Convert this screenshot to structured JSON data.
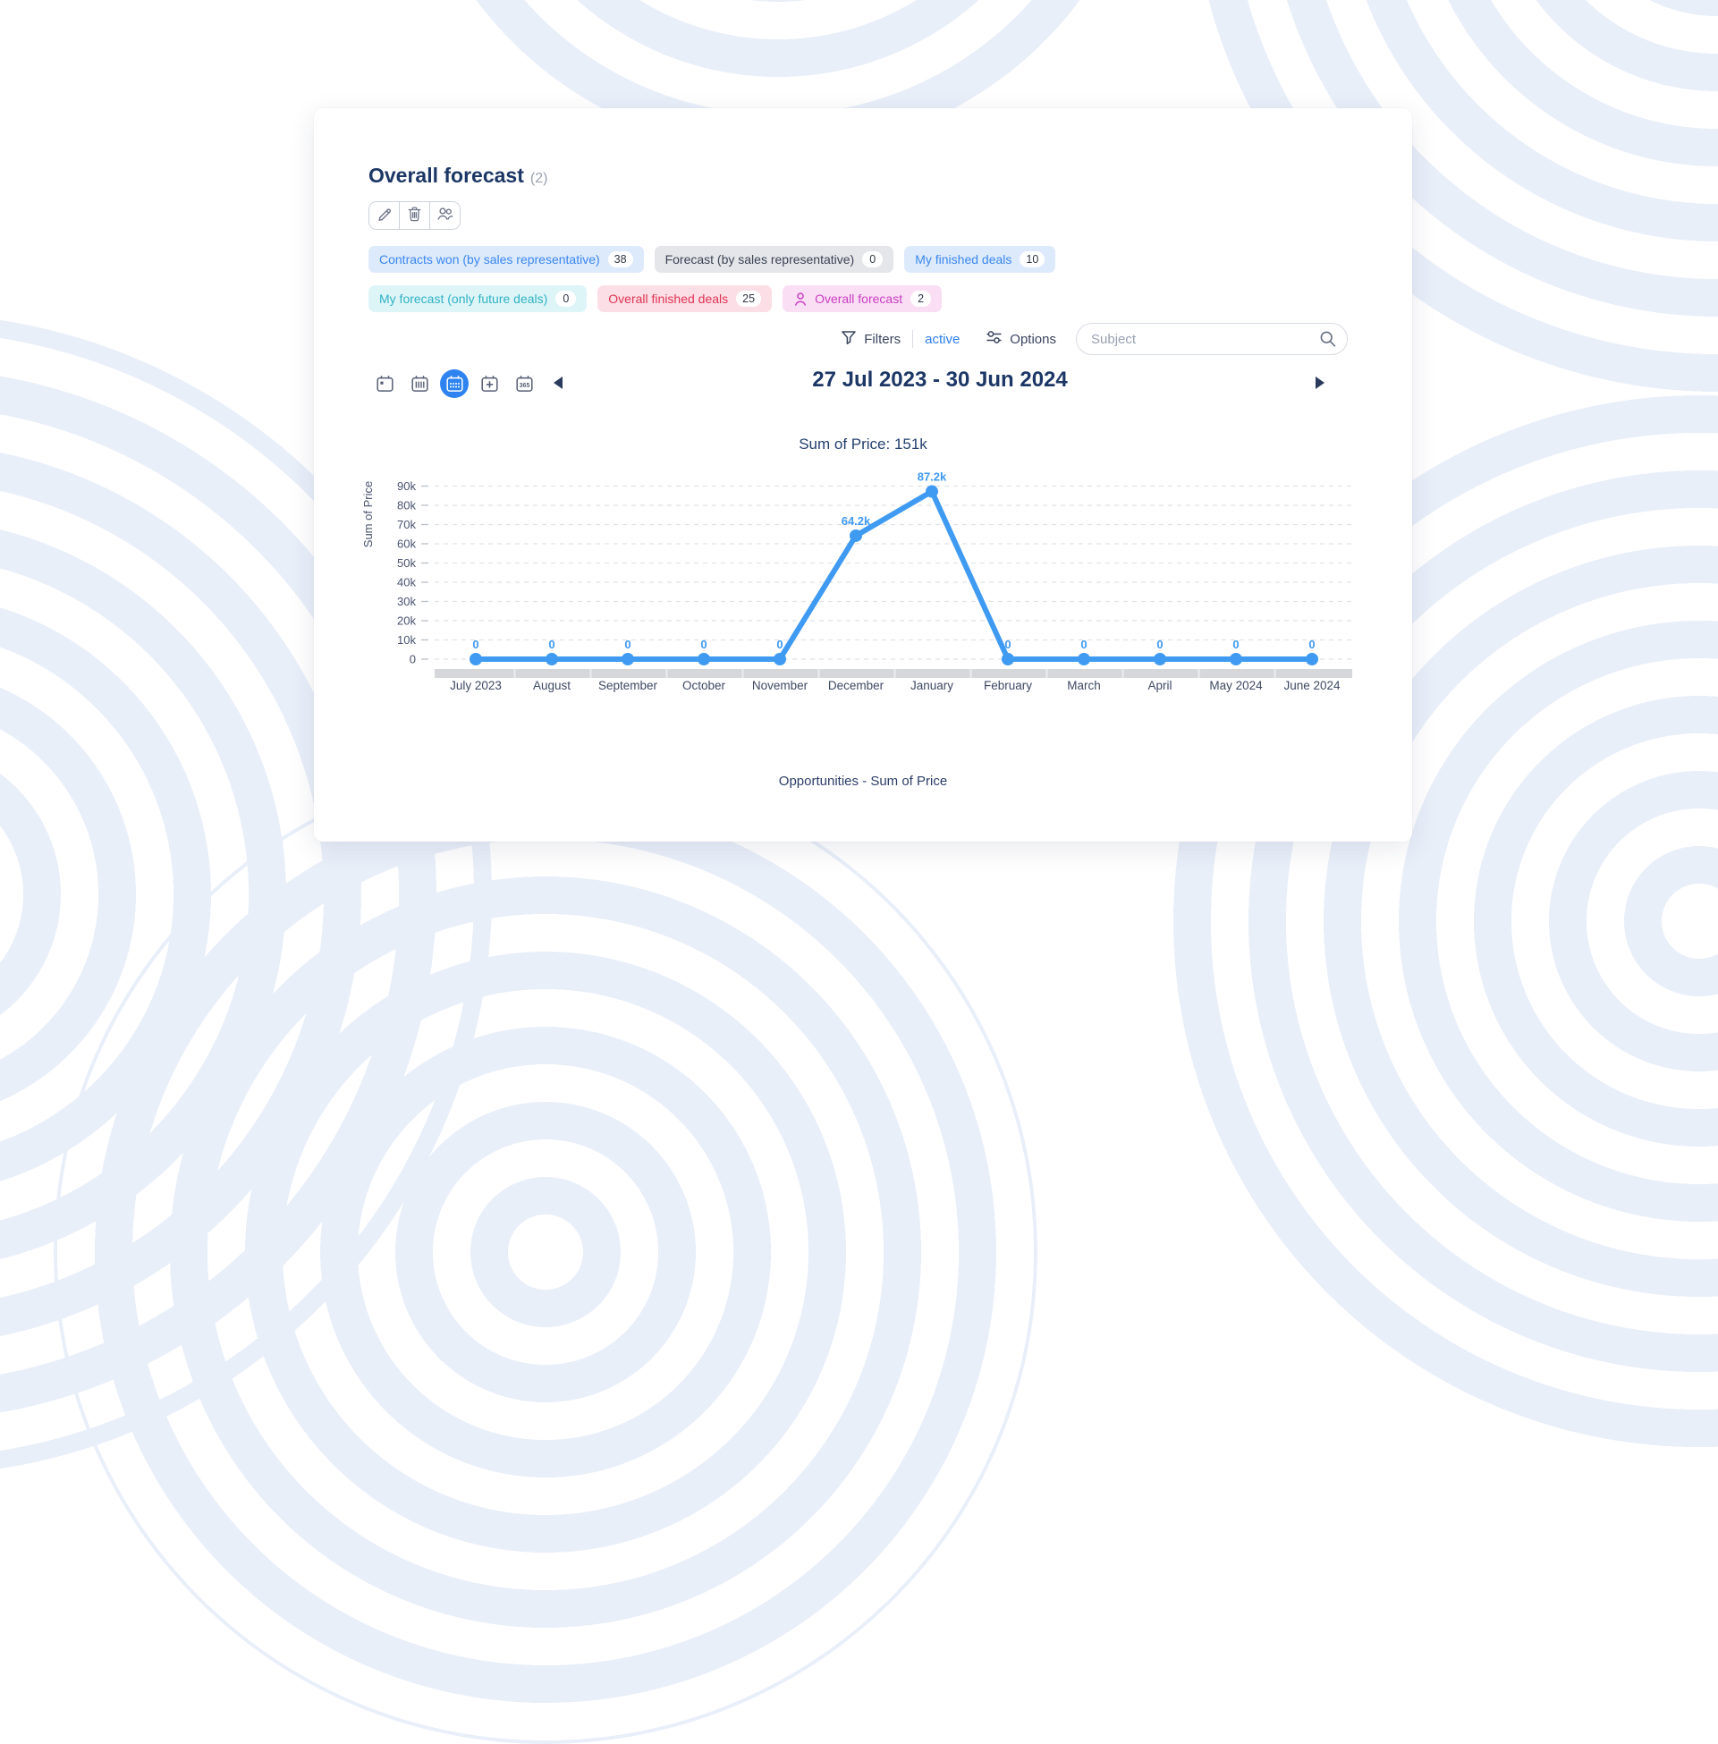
{
  "window": {
    "title": "Overall forecast",
    "count": "(2)"
  },
  "tags": [
    {
      "label": "Contracts won (by sales representative)",
      "count": "38",
      "bg": "#ddeafc",
      "fg": "#3b87f0"
    },
    {
      "label": "Forecast (by sales representative)",
      "count": "0",
      "bg": "#e4e6ea",
      "fg": "#3c4354"
    },
    {
      "label": "My finished deals",
      "count": "10",
      "bg": "#ddeafc",
      "fg": "#3b87f0"
    },
    {
      "label": "My forecast (only future deals)",
      "count": "0",
      "bg": "#def5f8",
      "fg": "#2fb2c4"
    },
    {
      "label": "Overall finished deals",
      "count": "25",
      "bg": "#fcdfe6",
      "fg": "#e03354"
    },
    {
      "label": "Overall forecast",
      "count": "2",
      "bg": "#fadef4",
      "fg": "#c93fc1",
      "icon": "person"
    }
  ],
  "filter_bar": {
    "filters_label": "Filters",
    "filters_state": "active",
    "options_label": "Options",
    "search_placeholder": "Subject",
    "accent": "#2f80ed"
  },
  "date_nav": {
    "range_label": "27 Jul 2023 - 30 Jun 2024",
    "views": [
      "day",
      "week",
      "month",
      "add",
      "year"
    ],
    "selected_view": "month",
    "year_icon_text": "365"
  },
  "chart_data": {
    "type": "line",
    "title": "Sum of Price: 151k",
    "ylabel": "Sum of Price",
    "xlabel": "",
    "legend": "Opportunities - Sum of Price",
    "categories": [
      "July 2023",
      "August",
      "September",
      "October",
      "November",
      "December",
      "January",
      "February",
      "March",
      "April",
      "May 2024",
      "June 2024"
    ],
    "series": [
      {
        "name": "Opportunities - Sum of Price",
        "values": [
          0,
          0,
          0,
          0,
          0,
          64200,
          87200,
          0,
          0,
          0,
          0,
          0
        ],
        "point_labels": [
          "0",
          "0",
          "0",
          "0",
          "0",
          "64.2k",
          "87.2k",
          "0",
          "0",
          "0",
          "0",
          "0"
        ]
      }
    ],
    "ylim": [
      0,
      90000
    ],
    "ytick_step": 10000,
    "yticks": [
      "0",
      "10k",
      "20k",
      "30k",
      "40k",
      "50k",
      "60k",
      "70k",
      "80k",
      "90k"
    ],
    "grid": "dashed-horizontal",
    "legend_position": "bottom",
    "line_color": "#3f9af2",
    "point_label_color": "#3f9af2"
  }
}
